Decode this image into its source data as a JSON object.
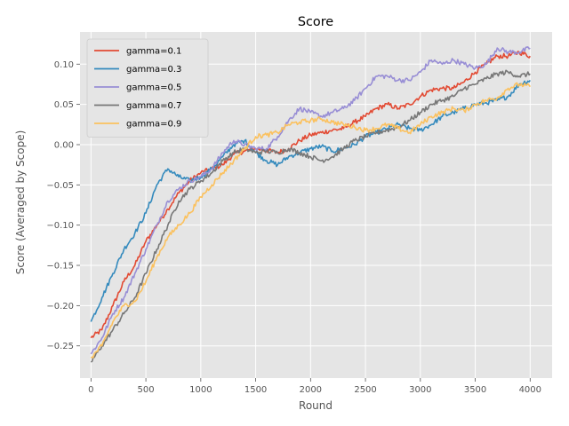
{
  "chart_data": {
    "type": "line",
    "title": "Score",
    "xlabel": "Round",
    "ylabel": "Score (Averaged by Scope)",
    "xlim": [
      -100,
      4200
    ],
    "ylim": [
      -0.29,
      0.14
    ],
    "xticks": [
      0,
      500,
      1000,
      1500,
      2000,
      2500,
      3000,
      3500,
      4000
    ],
    "xtick_labels": [
      "0",
      "500",
      "1000",
      "1500",
      "2000",
      "2500",
      "3000",
      "3500",
      "4000"
    ],
    "yticks": [
      -0.25,
      -0.2,
      -0.15,
      -0.1,
      -0.05,
      0.0,
      0.05,
      0.1
    ],
    "ytick_labels": [
      "−0.25",
      "−0.20",
      "−0.15",
      "−0.10",
      "−0.05",
      "0.00",
      "0.05",
      "0.10"
    ],
    "grid": true,
    "legend_position": "top-left",
    "background": "#e5e5e5",
    "x": [
      0,
      100,
      200,
      300,
      400,
      500,
      600,
      700,
      800,
      900,
      1000,
      1100,
      1200,
      1300,
      1400,
      1500,
      1600,
      1700,
      1800,
      1900,
      2000,
      2100,
      2200,
      2300,
      2400,
      2500,
      2600,
      2700,
      2800,
      2900,
      3000,
      3100,
      3200,
      3300,
      3400,
      3500,
      3600,
      3700,
      3800,
      3900,
      4000
    ],
    "series": [
      {
        "name": "gamma=0.1",
        "color": "#E24A33",
        "values": [
          -0.24,
          -0.23,
          -0.2,
          -0.17,
          -0.15,
          -0.12,
          -0.1,
          -0.08,
          -0.06,
          -0.045,
          -0.035,
          -0.03,
          -0.025,
          -0.012,
          -0.008,
          -0.005,
          -0.007,
          -0.01,
          -0.005,
          0.005,
          0.012,
          0.015,
          0.018,
          0.02,
          0.028,
          0.035,
          0.045,
          0.05,
          0.045,
          0.05,
          0.06,
          0.068,
          0.07,
          0.07,
          0.078,
          0.09,
          0.1,
          0.11,
          0.11,
          0.115,
          0.11
        ]
      },
      {
        "name": "gamma=0.3",
        "color": "#348ABD",
        "values": [
          -0.22,
          -0.19,
          -0.16,
          -0.13,
          -0.11,
          -0.085,
          -0.05,
          -0.03,
          -0.04,
          -0.045,
          -0.04,
          -0.03,
          -0.015,
          0.0,
          0.005,
          -0.01,
          -0.02,
          -0.025,
          -0.015,
          -0.01,
          -0.005,
          -0.002,
          -0.008,
          -0.005,
          0.0,
          0.01,
          0.015,
          0.02,
          0.025,
          0.02,
          0.018,
          0.025,
          0.035,
          0.04,
          0.045,
          0.05,
          0.052,
          0.055,
          0.06,
          0.075,
          0.08
        ]
      },
      {
        "name": "gamma=0.5",
        "color": "#988ED5",
        "values": [
          -0.26,
          -0.24,
          -0.21,
          -0.19,
          -0.16,
          -0.13,
          -0.1,
          -0.07,
          -0.055,
          -0.045,
          -0.04,
          -0.03,
          -0.01,
          0.005,
          0.0,
          -0.005,
          -0.005,
          0.01,
          0.03,
          0.045,
          0.04,
          0.035,
          0.04,
          0.045,
          0.055,
          0.07,
          0.085,
          0.085,
          0.08,
          0.08,
          0.09,
          0.105,
          0.1,
          0.105,
          0.1,
          0.095,
          0.1,
          0.12,
          0.115,
          0.115,
          0.12
        ]
      },
      {
        "name": "gamma=0.7",
        "color": "#777777",
        "values": [
          -0.27,
          -0.25,
          -0.23,
          -0.21,
          -0.19,
          -0.16,
          -0.13,
          -0.1,
          -0.07,
          -0.055,
          -0.045,
          -0.035,
          -0.02,
          -0.01,
          -0.005,
          -0.01,
          -0.008,
          -0.01,
          -0.005,
          -0.01,
          -0.015,
          -0.02,
          -0.015,
          -0.005,
          0.005,
          0.01,
          0.015,
          0.018,
          0.022,
          0.03,
          0.04,
          0.05,
          0.055,
          0.06,
          0.07,
          0.075,
          0.082,
          0.088,
          0.09,
          0.085,
          0.088
        ]
      },
      {
        "name": "gamma=0.9",
        "color": "#FBC15E",
        "values": [
          -0.265,
          -0.25,
          -0.22,
          -0.2,
          -0.195,
          -0.17,
          -0.14,
          -0.115,
          -0.1,
          -0.085,
          -0.065,
          -0.05,
          -0.035,
          -0.02,
          -0.005,
          0.01,
          0.012,
          0.015,
          0.025,
          0.028,
          0.03,
          0.032,
          0.028,
          0.025,
          0.022,
          0.018,
          0.02,
          0.025,
          0.02,
          0.015,
          0.025,
          0.035,
          0.04,
          0.045,
          0.042,
          0.05,
          0.055,
          0.058,
          0.07,
          0.075,
          0.072
        ]
      }
    ]
  }
}
